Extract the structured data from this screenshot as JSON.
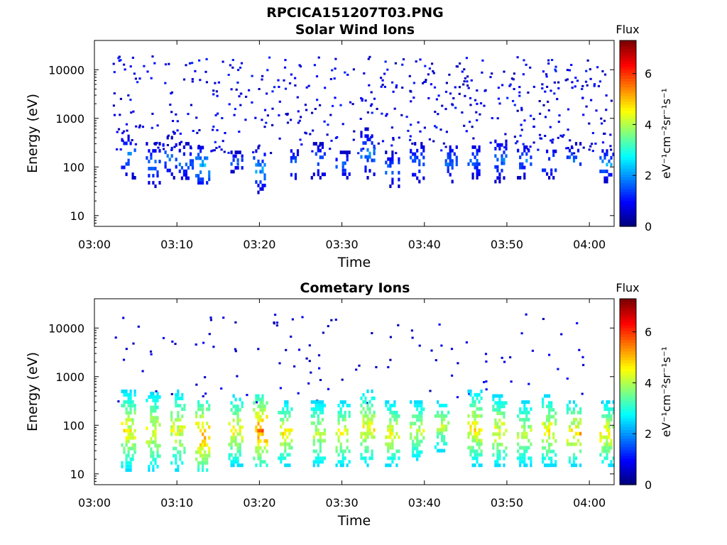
{
  "figure_title": "RPCICA151207T03.PNG",
  "chart_data": [
    {
      "type": "heatmap",
      "title": "Solar Wind Ions",
      "xlabel": "Time",
      "ylabel": "Energy (eV)",
      "x_ticks": [
        "03:00",
        "03:10",
        "03:20",
        "03:30",
        "03:40",
        "03:50",
        "04:00"
      ],
      "xlim": [
        "03:00",
        "04:03"
      ],
      "y_scale": "log",
      "y_ticks": [
        10,
        100,
        1000,
        10000
      ],
      "y_tick_labels": [
        "10",
        "100",
        "1000",
        "10000"
      ],
      "ylim": [
        6,
        40000
      ],
      "colorbar": {
        "title": "Flux",
        "label": "eV⁻¹cm⁻²sr⁻¹s⁻¹",
        "min": 0,
        "max": 7.3,
        "ticks": [
          0,
          2,
          4,
          6
        ],
        "colormap": "jet"
      },
      "bursts": [
        {
          "time": "03:04",
          "energy": [
            60,
            500
          ],
          "flux": [
            0.5,
            2.2
          ]
        },
        {
          "time": "03:07",
          "energy": [
            40,
            300
          ],
          "flux": [
            0.5,
            2
          ]
        },
        {
          "time": "03:09",
          "energy": [
            60,
            400
          ],
          "flux": [
            0.5,
            2
          ]
        },
        {
          "time": "03:11",
          "energy": [
            50,
            300
          ],
          "flux": [
            0.5,
            2
          ]
        },
        {
          "time": "03:13",
          "energy": [
            40,
            250
          ],
          "flux": [
            0.8,
            2.8
          ]
        },
        {
          "time": "03:17",
          "energy": [
            80,
            200
          ],
          "flux": [
            0.5,
            2
          ]
        },
        {
          "time": "03:20",
          "energy": [
            30,
            250
          ],
          "flux": [
            0.5,
            2.5
          ]
        },
        {
          "time": "03:24",
          "energy": [
            50,
            250
          ],
          "flux": [
            0.5,
            2
          ]
        },
        {
          "time": "03:27",
          "energy": [
            60,
            300
          ],
          "flux": [
            0.5,
            2
          ]
        },
        {
          "time": "03:30",
          "energy": [
            60,
            200
          ],
          "flux": [
            0.5,
            2
          ]
        },
        {
          "time": "03:33",
          "energy": [
            60,
            600
          ],
          "flux": [
            0.5,
            2.2
          ]
        },
        {
          "time": "03:36",
          "energy": [
            40,
            200
          ],
          "flux": [
            0.5,
            2
          ]
        },
        {
          "time": "03:39",
          "energy": [
            50,
            300
          ],
          "flux": [
            0.5,
            2
          ]
        },
        {
          "time": "03:43",
          "energy": [
            50,
            300
          ],
          "flux": [
            0.5,
            2
          ]
        },
        {
          "time": "03:46",
          "energy": [
            60,
            300
          ],
          "flux": [
            0.5,
            2
          ]
        },
        {
          "time": "03:49",
          "energy": [
            50,
            400
          ],
          "flux": [
            0.5,
            2
          ]
        },
        {
          "time": "03:52",
          "energy": [
            60,
            300
          ],
          "flux": [
            0.5,
            2
          ]
        },
        {
          "time": "03:55",
          "energy": [
            60,
            250
          ],
          "flux": [
            0.5,
            2
          ]
        },
        {
          "time": "03:58",
          "energy": [
            60,
            300
          ],
          "flux": [
            0.5,
            2
          ]
        },
        {
          "time": "04:02",
          "energy": [
            50,
            250
          ],
          "flux": [
            0.5,
            2.4
          ]
        }
      ],
      "background": {
        "energy": [
          200,
          20000
        ],
        "flux": [
          0.3,
          1.2
        ]
      }
    },
    {
      "type": "heatmap",
      "title": "Cometary Ions",
      "xlabel": "Time",
      "ylabel": "Energy (eV)",
      "x_ticks": [
        "03:00",
        "03:10",
        "03:20",
        "03:30",
        "03:40",
        "03:50",
        "04:00"
      ],
      "xlim": [
        "03:00",
        "04:03"
      ],
      "y_scale": "log",
      "y_ticks": [
        10,
        100,
        1000,
        10000
      ],
      "y_tick_labels": [
        "10",
        "100",
        "1000",
        "10000"
      ],
      "ylim": [
        6,
        40000
      ],
      "colorbar": {
        "title": "Flux",
        "label": "eV⁻¹cm⁻²sr⁻¹s⁻¹",
        "min": 0,
        "max": 7.3,
        "ticks": [
          0,
          2,
          4,
          6
        ],
        "colormap": "jet"
      },
      "bursts": [
        {
          "time": "03:04",
          "energy": [
            12,
            500
          ],
          "flux": [
            2.5,
            5
          ]
        },
        {
          "time": "03:07",
          "energy": [
            12,
            450
          ],
          "flux": [
            2.5,
            4.8
          ]
        },
        {
          "time": "03:10",
          "energy": [
            12,
            500
          ],
          "flux": [
            2.5,
            4.8
          ]
        },
        {
          "time": "03:13",
          "energy": [
            12,
            300
          ],
          "flux": [
            3,
            5.8
          ]
        },
        {
          "time": "03:17",
          "energy": [
            15,
            400
          ],
          "flux": [
            2.5,
            5
          ]
        },
        {
          "time": "03:20",
          "energy": [
            15,
            400
          ],
          "flux": [
            3,
            6
          ]
        },
        {
          "time": "03:23",
          "energy": [
            15,
            300
          ],
          "flux": [
            2.5,
            5
          ]
        },
        {
          "time": "03:27",
          "energy": [
            15,
            300
          ],
          "flux": [
            2.5,
            4.5
          ]
        },
        {
          "time": "03:30",
          "energy": [
            15,
            300
          ],
          "flux": [
            2.5,
            5
          ]
        },
        {
          "time": "03:33",
          "energy": [
            15,
            500
          ],
          "flux": [
            2.5,
            5
          ]
        },
        {
          "time": "03:36",
          "energy": [
            15,
            300
          ],
          "flux": [
            2.5,
            5
          ]
        },
        {
          "time": "03:39",
          "energy": [
            20,
            300
          ],
          "flux": [
            2.5,
            4.5
          ]
        },
        {
          "time": "03:42",
          "energy": [
            30,
            300
          ],
          "flux": [
            2.5,
            4.5
          ]
        },
        {
          "time": "03:46",
          "energy": [
            15,
            500
          ],
          "flux": [
            2.5,
            5.2
          ]
        },
        {
          "time": "03:49",
          "energy": [
            15,
            400
          ],
          "flux": [
            2.5,
            5
          ]
        },
        {
          "time": "03:52",
          "energy": [
            15,
            300
          ],
          "flux": [
            2.5,
            4.5
          ]
        },
        {
          "time": "03:55",
          "energy": [
            15,
            400
          ],
          "flux": [
            2.5,
            5
          ]
        },
        {
          "time": "03:58",
          "energy": [
            15,
            300
          ],
          "flux": [
            2.5,
            5.5
          ]
        },
        {
          "time": "04:02",
          "energy": [
            15,
            300
          ],
          "flux": [
            2.5,
            5.2
          ]
        }
      ],
      "background": {
        "energy": [
          300,
          20000
        ],
        "flux": [
          0.3,
          1
        ]
      }
    }
  ]
}
